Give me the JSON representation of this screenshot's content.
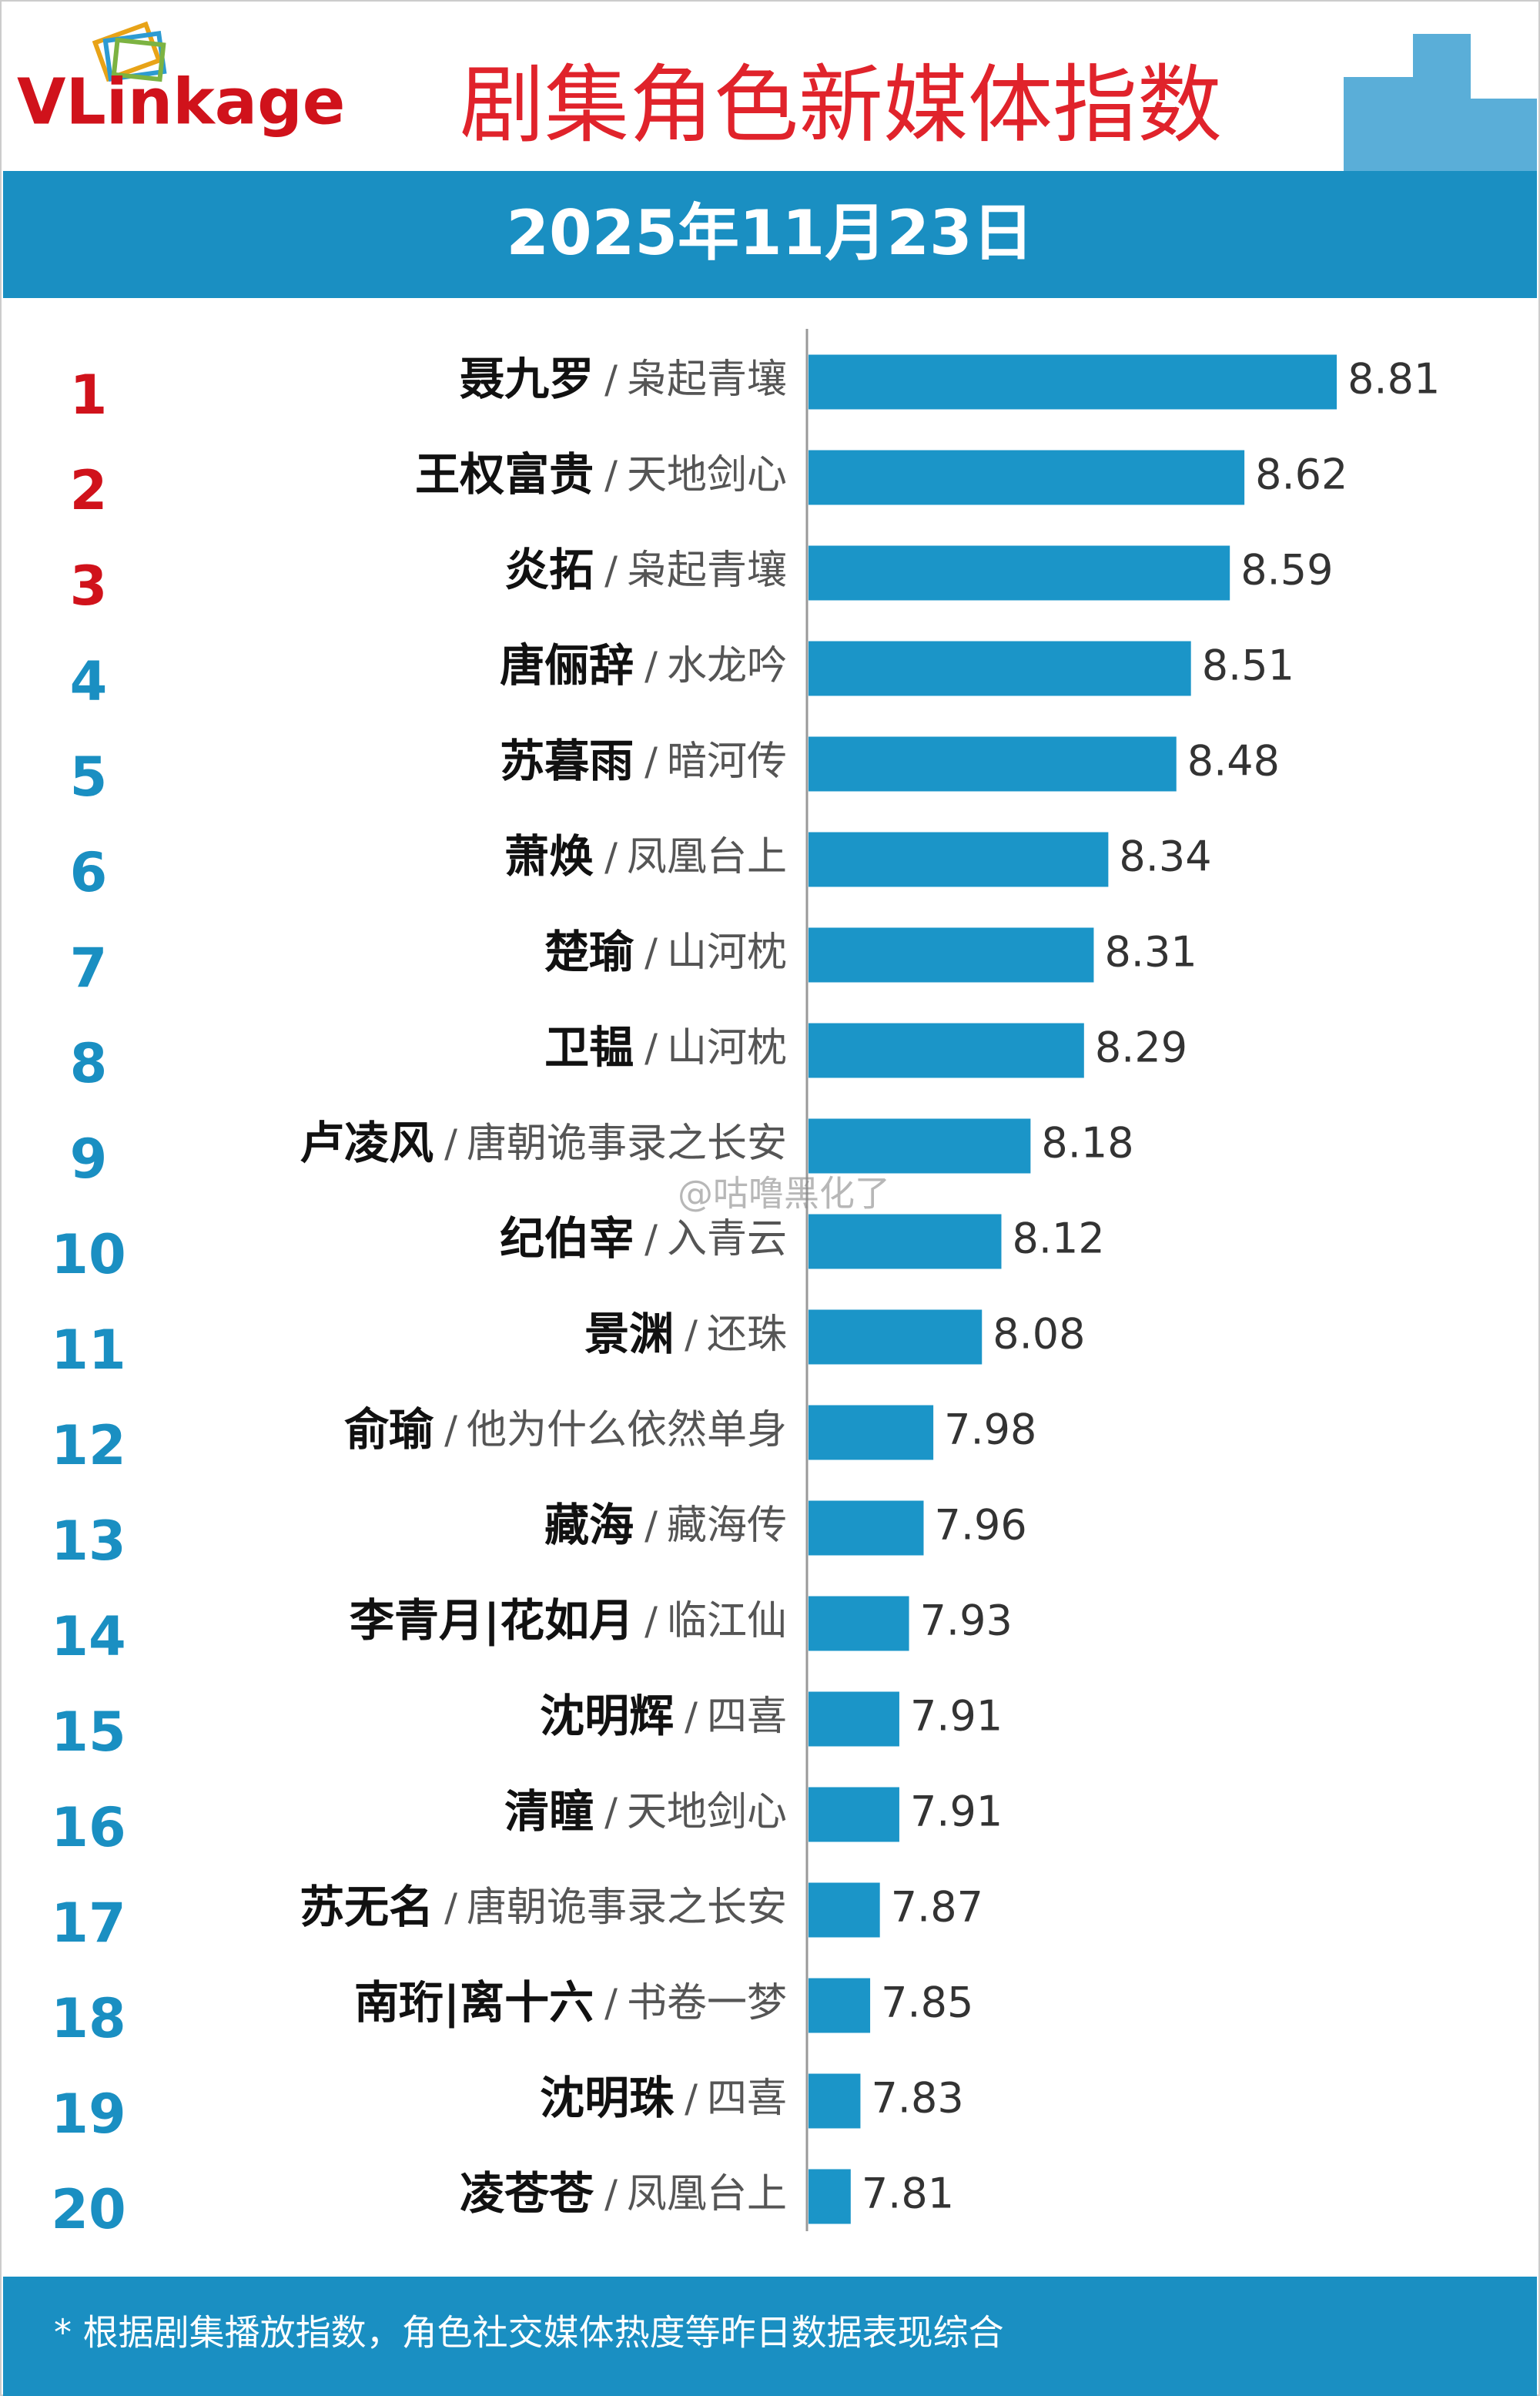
{
  "chart_data": {
    "type": "bar",
    "logo": "VLinkage",
    "title": "剧集角色新媒体指数",
    "subtitle": "2025年11月23日",
    "ranks": [
      1,
      2,
      3,
      4,
      5,
      6,
      7,
      8,
      9,
      10,
      11,
      12,
      13,
      14,
      15,
      16,
      17,
      18,
      19,
      20
    ],
    "categories": [
      "聂九罗",
      "王权富贵",
      "炎拓",
      "唐俪辞",
      "苏暮雨",
      "萧焕",
      "楚瑜",
      "卫韫",
      "卢凌风",
      "纪伯宰",
      "景渊",
      "俞瑜",
      "藏海",
      "李青月|花如月",
      "沈明辉",
      "清瞳",
      "苏无名",
      "南珩|离十六",
      "沈明珠",
      "凌苍苍"
    ],
    "separator": "/",
    "dramas": [
      "枭起青壤",
      "天地剑心",
      "枭起青壤",
      "水龙吟",
      "暗河传",
      "凤凰台上",
      "山河枕",
      "山河枕",
      "唐朝诡事录之长安",
      "入青云",
      "还珠",
      "他为什么依然单身",
      "藏海传",
      "临江仙",
      "四喜",
      "天地剑心",
      "唐朝诡事录之长安",
      "书卷一梦",
      "四喜",
      "凤凰台上"
    ],
    "values": [
      8.81,
      8.62,
      8.59,
      8.51,
      8.48,
      8.34,
      8.31,
      8.29,
      8.18,
      8.12,
      8.08,
      7.98,
      7.96,
      7.93,
      7.91,
      7.91,
      7.87,
      7.85,
      7.83,
      7.81
    ],
    "xlim": [
      7.72,
      9.0
    ],
    "color": "#1b95c8",
    "top_rank_color": "#d0121b",
    "rank_color": "#1a8fc2",
    "footnote": "* 根据剧集播放指数，角色社交媒体热度等昨日数据表现综合",
    "watermark": "@咕噜黑化了"
  }
}
